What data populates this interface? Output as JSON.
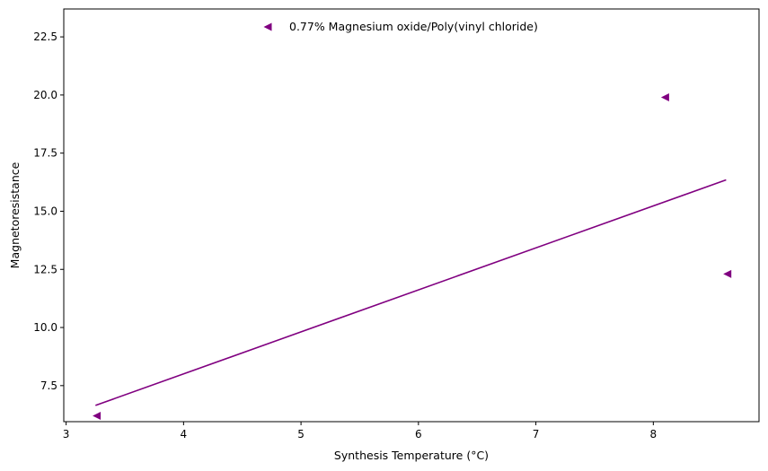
{
  "chart_data": {
    "type": "scatter",
    "xlabel": "Synthesis Temperature (°C)",
    "ylabel": "Magnetoresistance",
    "xlim": [
      2.98,
      8.9
    ],
    "ylim": [
      5.95,
      23.7
    ],
    "xticks": [
      3,
      4,
      5,
      6,
      7,
      8
    ],
    "yticks": [
      7.5,
      10.0,
      12.5,
      15.0,
      17.5,
      20.0,
      22.5
    ],
    "xtick_labels": [
      "3",
      "4",
      "5",
      "6",
      "7",
      "8"
    ],
    "ytick_labels": [
      "7.5",
      "10.0",
      "12.5",
      "15.0",
      "17.5",
      "20.0",
      "22.5"
    ],
    "grid": false,
    "legend_position": "top-center",
    "series": [
      {
        "name": "0.77% Magnesium oxide/Poly(vinyl chloride)",
        "marker": "triangle-left",
        "color": "#800080",
        "points": [
          {
            "x": 3.26,
            "y": 6.2
          },
          {
            "x": 8.1,
            "y": 19.9
          },
          {
            "x": 8.63,
            "y": 12.3
          }
        ]
      }
    ],
    "trend_line": {
      "color": "#800080",
      "x": [
        3.25,
        8.62
      ],
      "y": [
        6.65,
        16.35
      ]
    }
  }
}
